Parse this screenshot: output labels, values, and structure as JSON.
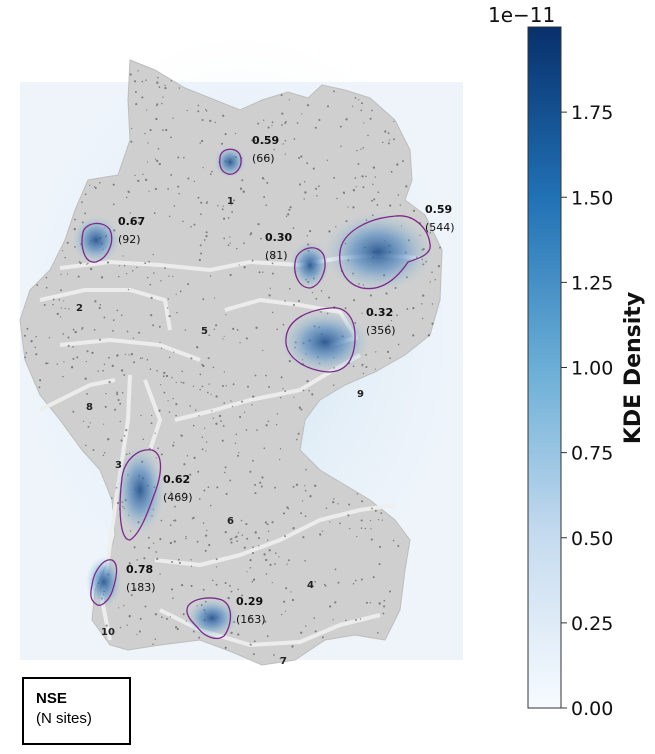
{
  "colorbar": {
    "title": "KDE Density",
    "exponent": "1e−11",
    "ticks": [
      "0.00",
      "0.25",
      "0.50",
      "0.75",
      "1.00",
      "1.25",
      "1.50",
      "1.75"
    ],
    "colors": [
      "#f7fbff",
      "#c6dbef",
      "#6baed6",
      "#2171b5",
      "#08306b"
    ]
  },
  "legend": {
    "line1": "NSE",
    "line2": "(N sites)"
  },
  "hotspots": [
    {
      "nse": "0.59",
      "n": "(66)"
    },
    {
      "nse": "0.67",
      "n": "(92)"
    },
    {
      "nse": "0.30",
      "n": "(81)"
    },
    {
      "nse": "0.59",
      "n": "(544)"
    },
    {
      "nse": "0.32",
      "n": "(356)"
    },
    {
      "nse": "0.62",
      "n": "(469)"
    },
    {
      "nse": "0.78",
      "n": "(183)"
    },
    {
      "nse": "0.29",
      "n": "(163)"
    }
  ],
  "regions": [
    "1",
    "2",
    "3",
    "4",
    "5",
    "6",
    "7",
    "8",
    "9",
    "10"
  ]
}
